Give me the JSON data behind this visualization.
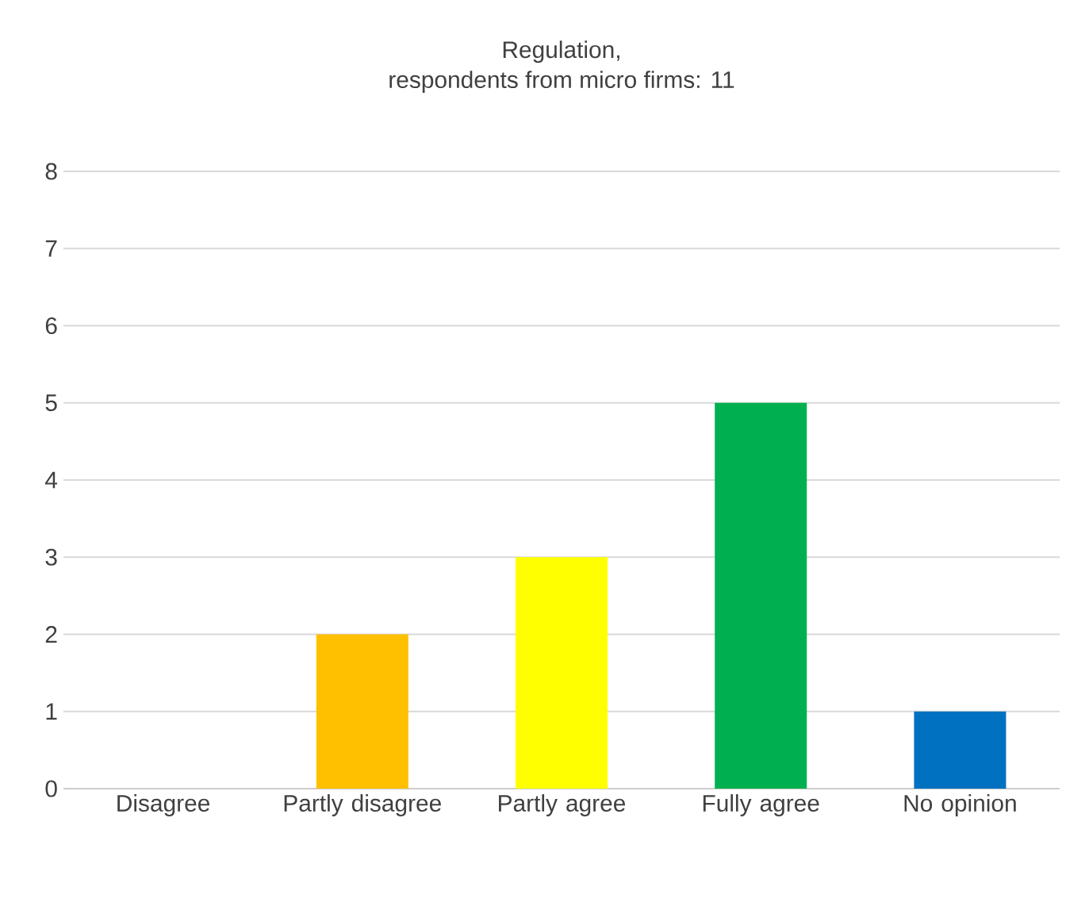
{
  "chart_data": {
    "type": "bar",
    "title": "Regulation,",
    "subtitle": "respondents from micro firms: 11",
    "categories": [
      "Disagree",
      "Partly disagree",
      "Partly agree",
      "Fully agree",
      "No opinion"
    ],
    "values": [
      0,
      2,
      3,
      5,
      1
    ],
    "colors": [
      "#c00000",
      "#ffc000",
      "#ffff00",
      "#00b050",
      "#0070c0"
    ],
    "ylim": [
      0,
      8
    ],
    "yticks": [
      0,
      1,
      2,
      3,
      4,
      5,
      6,
      7,
      8
    ],
    "grid": "y"
  }
}
